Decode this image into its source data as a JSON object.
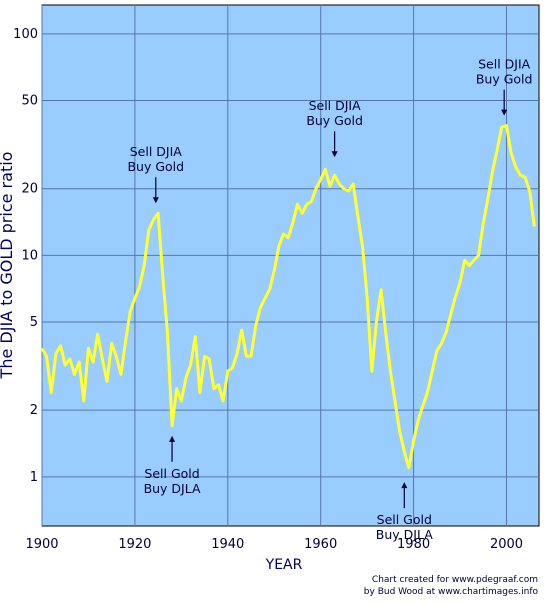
{
  "chart_data": {
    "type": "line",
    "ylabel": "The DJIA to GOLD price ratio",
    "xlabel": "YEAR",
    "y_scale": "log",
    "ylim": [
      0.6,
      135
    ],
    "xlim": [
      1900,
      2007
    ],
    "x_ticks": [
      1900,
      1920,
      1940,
      1960,
      1980,
      2000
    ],
    "y_ticks": [
      1,
      2,
      5,
      10,
      20,
      50,
      100
    ],
    "grid": true,
    "background_color": "#99ccff",
    "line_color": "#ffff33",
    "series": [
      {
        "x": [
          1900,
          1901,
          1902,
          1903,
          1904,
          1905,
          1906,
          1907,
          1908,
          1909,
          1910,
          1911,
          1912,
          1913,
          1914,
          1915,
          1916,
          1917,
          1918,
          1919,
          1920,
          1921,
          1922,
          1923,
          1924,
          1925,
          1926,
          1927,
          1928,
          1929,
          1930,
          1931,
          1932,
          1933,
          1934,
          1935,
          1936,
          1937,
          1938,
          1939,
          1940,
          1941,
          1942,
          1943,
          1944,
          1945,
          1946,
          1947,
          1948,
          1949,
          1950,
          1951,
          1952,
          1953,
          1954,
          1955,
          1956,
          1957,
          1958,
          1959,
          1960,
          1961,
          1962,
          1963,
          1964,
          1965,
          1966,
          1967,
          1968,
          1969,
          1970,
          1971,
          1972,
          1973,
          1974,
          1975,
          1976,
          1977,
          1978,
          1979,
          1980,
          1981,
          1982,
          1983,
          1984,
          1985,
          1986,
          1987,
          1988,
          1989,
          1990,
          1991,
          1992,
          1993,
          1994,
          1995,
          1996,
          1997,
          1998,
          1999,
          2000,
          2001,
          2002,
          2003,
          2004,
          2005,
          2006
        ],
        "y": [
          3.8,
          3.5,
          2.4,
          3.6,
          3.9,
          3.2,
          3.4,
          2.9,
          3.3,
          2.2,
          3.8,
          3.3,
          4.4,
          3.4,
          2.7,
          4.0,
          3.5,
          2.9,
          4.1,
          5.6,
          6.4,
          7.2,
          9.0,
          13.0,
          14.5,
          15.5,
          8.0,
          4.5,
          1.7,
          2.5,
          2.2,
          2.8,
          3.2,
          4.3,
          2.4,
          3.5,
          3.4,
          2.5,
          2.6,
          2.2,
          3.0,
          3.1,
          3.6,
          4.6,
          3.5,
          3.5,
          4.8,
          5.8,
          6.4,
          7.0,
          8.5,
          11.0,
          12.5,
          12.0,
          14.0,
          17.0,
          15.5,
          17.0,
          17.5,
          20.0,
          22.0,
          24.5,
          20.5,
          23.0,
          21.0,
          20.0,
          19.5,
          21.0,
          15.0,
          11.0,
          6.5,
          3.0,
          5.0,
          7.0,
          4.5,
          3.0,
          2.2,
          1.6,
          1.3,
          1.1,
          1.45,
          1.8,
          2.1,
          2.4,
          3.0,
          3.7,
          4.0,
          4.5,
          5.4,
          6.5,
          7.5,
          9.5,
          9.0,
          9.5,
          10.0,
          14.0,
          18.0,
          24.0,
          30.0,
          38.0,
          38.5,
          29.0,
          25.0,
          23.0,
          22.5,
          19.5,
          13.5
        ]
      }
    ],
    "annotations": [
      {
        "lines": [
          "Sell DJIA",
          "Buy Gold"
        ],
        "x": 1924.5,
        "y": 15.5,
        "dir": "down"
      },
      {
        "lines": [
          "Sell DJIA",
          "Buy Gold"
        ],
        "x": 1963,
        "y": 25.0,
        "dir": "down"
      },
      {
        "lines": [
          "Sell DJIA",
          "Buy Gold"
        ],
        "x": 1999.5,
        "y": 38.5,
        "dir": "down"
      },
      {
        "lines": [
          "Sell Gold",
          "Buy DJLA"
        ],
        "x": 1928,
        "y": 1.7,
        "dir": "up"
      },
      {
        "lines": [
          "Sell Gold",
          "Buy DJLA"
        ],
        "x": 1978,
        "y": 1.05,
        "dir": "up"
      }
    ],
    "credit": [
      "Chart created for www.pdegraaf.com",
      "by Bud Wood at www.chartimages.info"
    ]
  }
}
